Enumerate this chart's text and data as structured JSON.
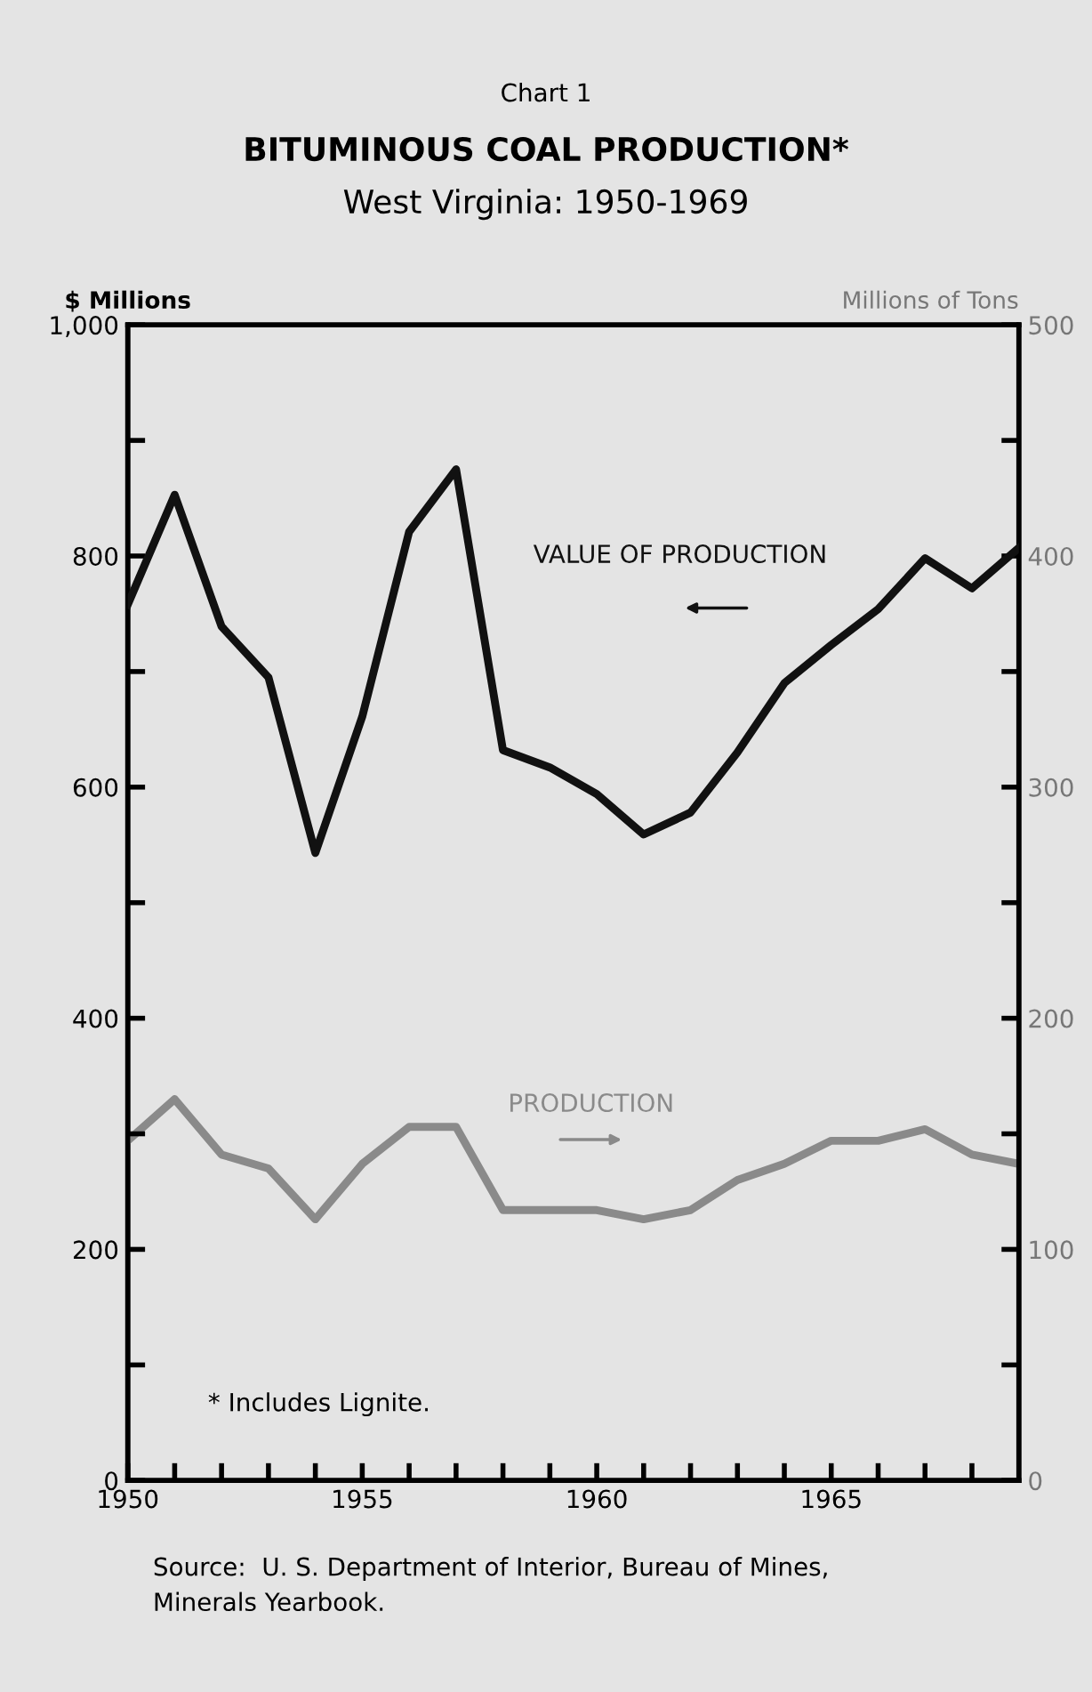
{
  "chart_data": {
    "type": "line",
    "title": "BITUMINOUS COAL PRODUCTION*",
    "subtitle": "West Virginia: 1950-1969",
    "ylabel": "$ Millions",
    "y2label": "Millions of Tons",
    "annotations": [
      "Chart 1",
      "* Includes Lignite.",
      "Source:  U. S. Department of Interior, Bureau of Mines,\nMinerals Yearbook."
    ],
    "x": [
      1950,
      1951,
      1952,
      1953,
      1954,
      1955,
      1956,
      1957,
      1958,
      1959,
      1960,
      1961,
      1962,
      1963,
      1964,
      1965,
      1966,
      1967,
      1968,
      1969
    ],
    "series": [
      {
        "name": "VALUE OF PRODUCTION",
        "color": "#111111",
        "values": [
          758,
          853,
          739,
          695,
          543,
          661,
          821,
          875,
          632,
          617,
          594,
          559,
          578,
          630,
          690,
          723,
          754,
          798,
          772,
          807
        ]
      },
      {
        "name": "PRODUCTION",
        "color": "#8a8a8a",
        "axis": "y2",
        "values": [
          147,
          165,
          141,
          135,
          113,
          137,
          153,
          153,
          117,
          117,
          117,
          113,
          117,
          130,
          137,
          147,
          147,
          152,
          141,
          137
        ]
      }
    ],
    "xlim": [
      1950,
      1969
    ],
    "xticks": [
      1950,
      {
        "value": 1951,
        "label": null
      },
      {
        "value": 1952,
        "label": null
      },
      {
        "value": 1953,
        "label": null
      },
      {
        "value": 1954,
        "label": null
      },
      1955,
      {
        "value": 1956,
        "label": null
      },
      {
        "value": 1957,
        "label": null
      },
      {
        "value": 1958,
        "label": null
      },
      {
        "value": 1959,
        "label": null
      },
      1960,
      {
        "value": 1961,
        "label": null
      },
      {
        "value": 1962,
        "label": null
      },
      {
        "value": 1963,
        "label": null
      },
      {
        "value": 1964,
        "label": null
      },
      1965,
      {
        "value": 1966,
        "label": null
      },
      {
        "value": 1967,
        "label": null
      },
      {
        "value": 1968,
        "label": null
      }
    ],
    "ylim": [
      0,
      1000
    ],
    "yticks": [
      0,
      {
        "value": 100,
        "label": null
      },
      200,
      {
        "value": 300,
        "label": null
      },
      400,
      {
        "value": 500,
        "label": null
      },
      600,
      {
        "value": 700,
        "label": null
      },
      800,
      {
        "value": 900,
        "label": null
      },
      {
        "value": 1000,
        "label": "1,000"
      }
    ],
    "y2lim": [
      0,
      500
    ],
    "y2ticks": [
      0,
      {
        "value": 50,
        "label": null
      },
      100,
      {
        "value": 150,
        "label": null
      },
      200,
      {
        "value": 250,
        "label": null
      },
      300,
      {
        "value": 350,
        "label": null
      },
      400,
      {
        "value": 450,
        "label": null
      },
      500
    ],
    "grid": false,
    "legend": false,
    "marker": "none",
    "line_style": "solid"
  }
}
